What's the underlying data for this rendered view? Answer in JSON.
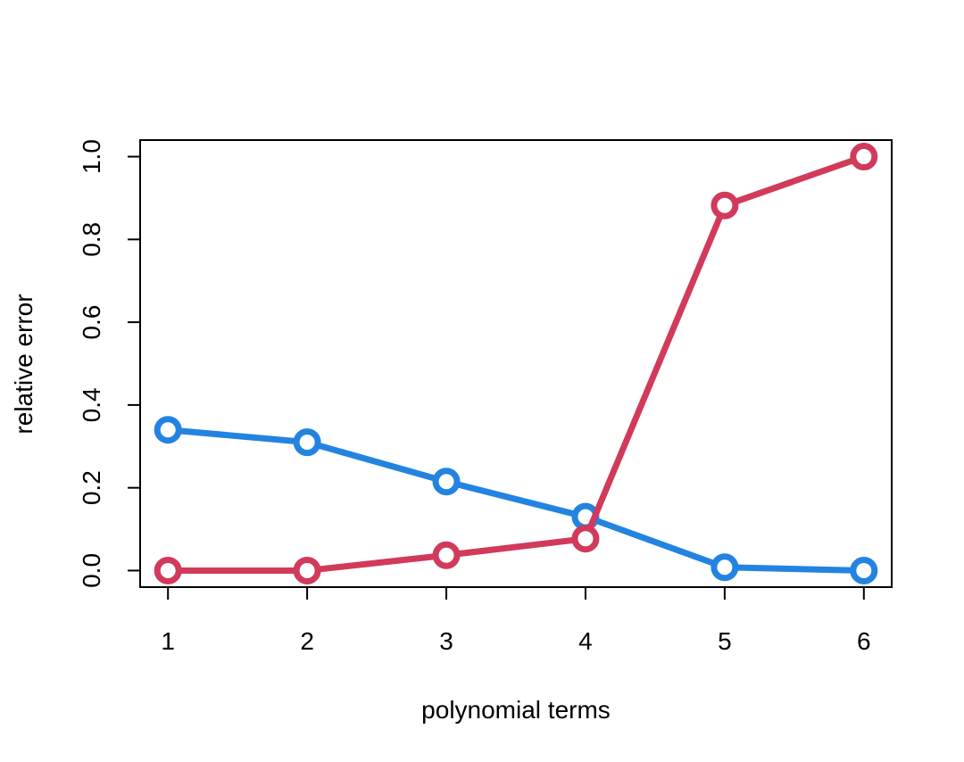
{
  "chart_data": {
    "type": "line",
    "title": "",
    "xlabel": "polynomial terms",
    "ylabel": "relative error",
    "x": [
      1,
      2,
      3,
      4,
      5,
      6
    ],
    "x_ticks": [
      "1",
      "2",
      "3",
      "4",
      "5",
      "6"
    ],
    "y_ticks": [
      "0.0",
      "0.2",
      "0.4",
      "0.6",
      "0.8",
      "1.0"
    ],
    "xlim": [
      0.8,
      6.2
    ],
    "ylim": [
      -0.04,
      1.04
    ],
    "grid": false,
    "legend": "none",
    "series": [
      {
        "color": "#2383E1",
        "values": [
          0.34,
          0.31,
          0.215,
          0.13,
          0.008,
          0.0
        ]
      },
      {
        "color": "#D13A5B",
        "values": [
          0.0,
          0.0,
          0.037,
          0.077,
          0.882,
          1.0
        ]
      }
    ]
  }
}
